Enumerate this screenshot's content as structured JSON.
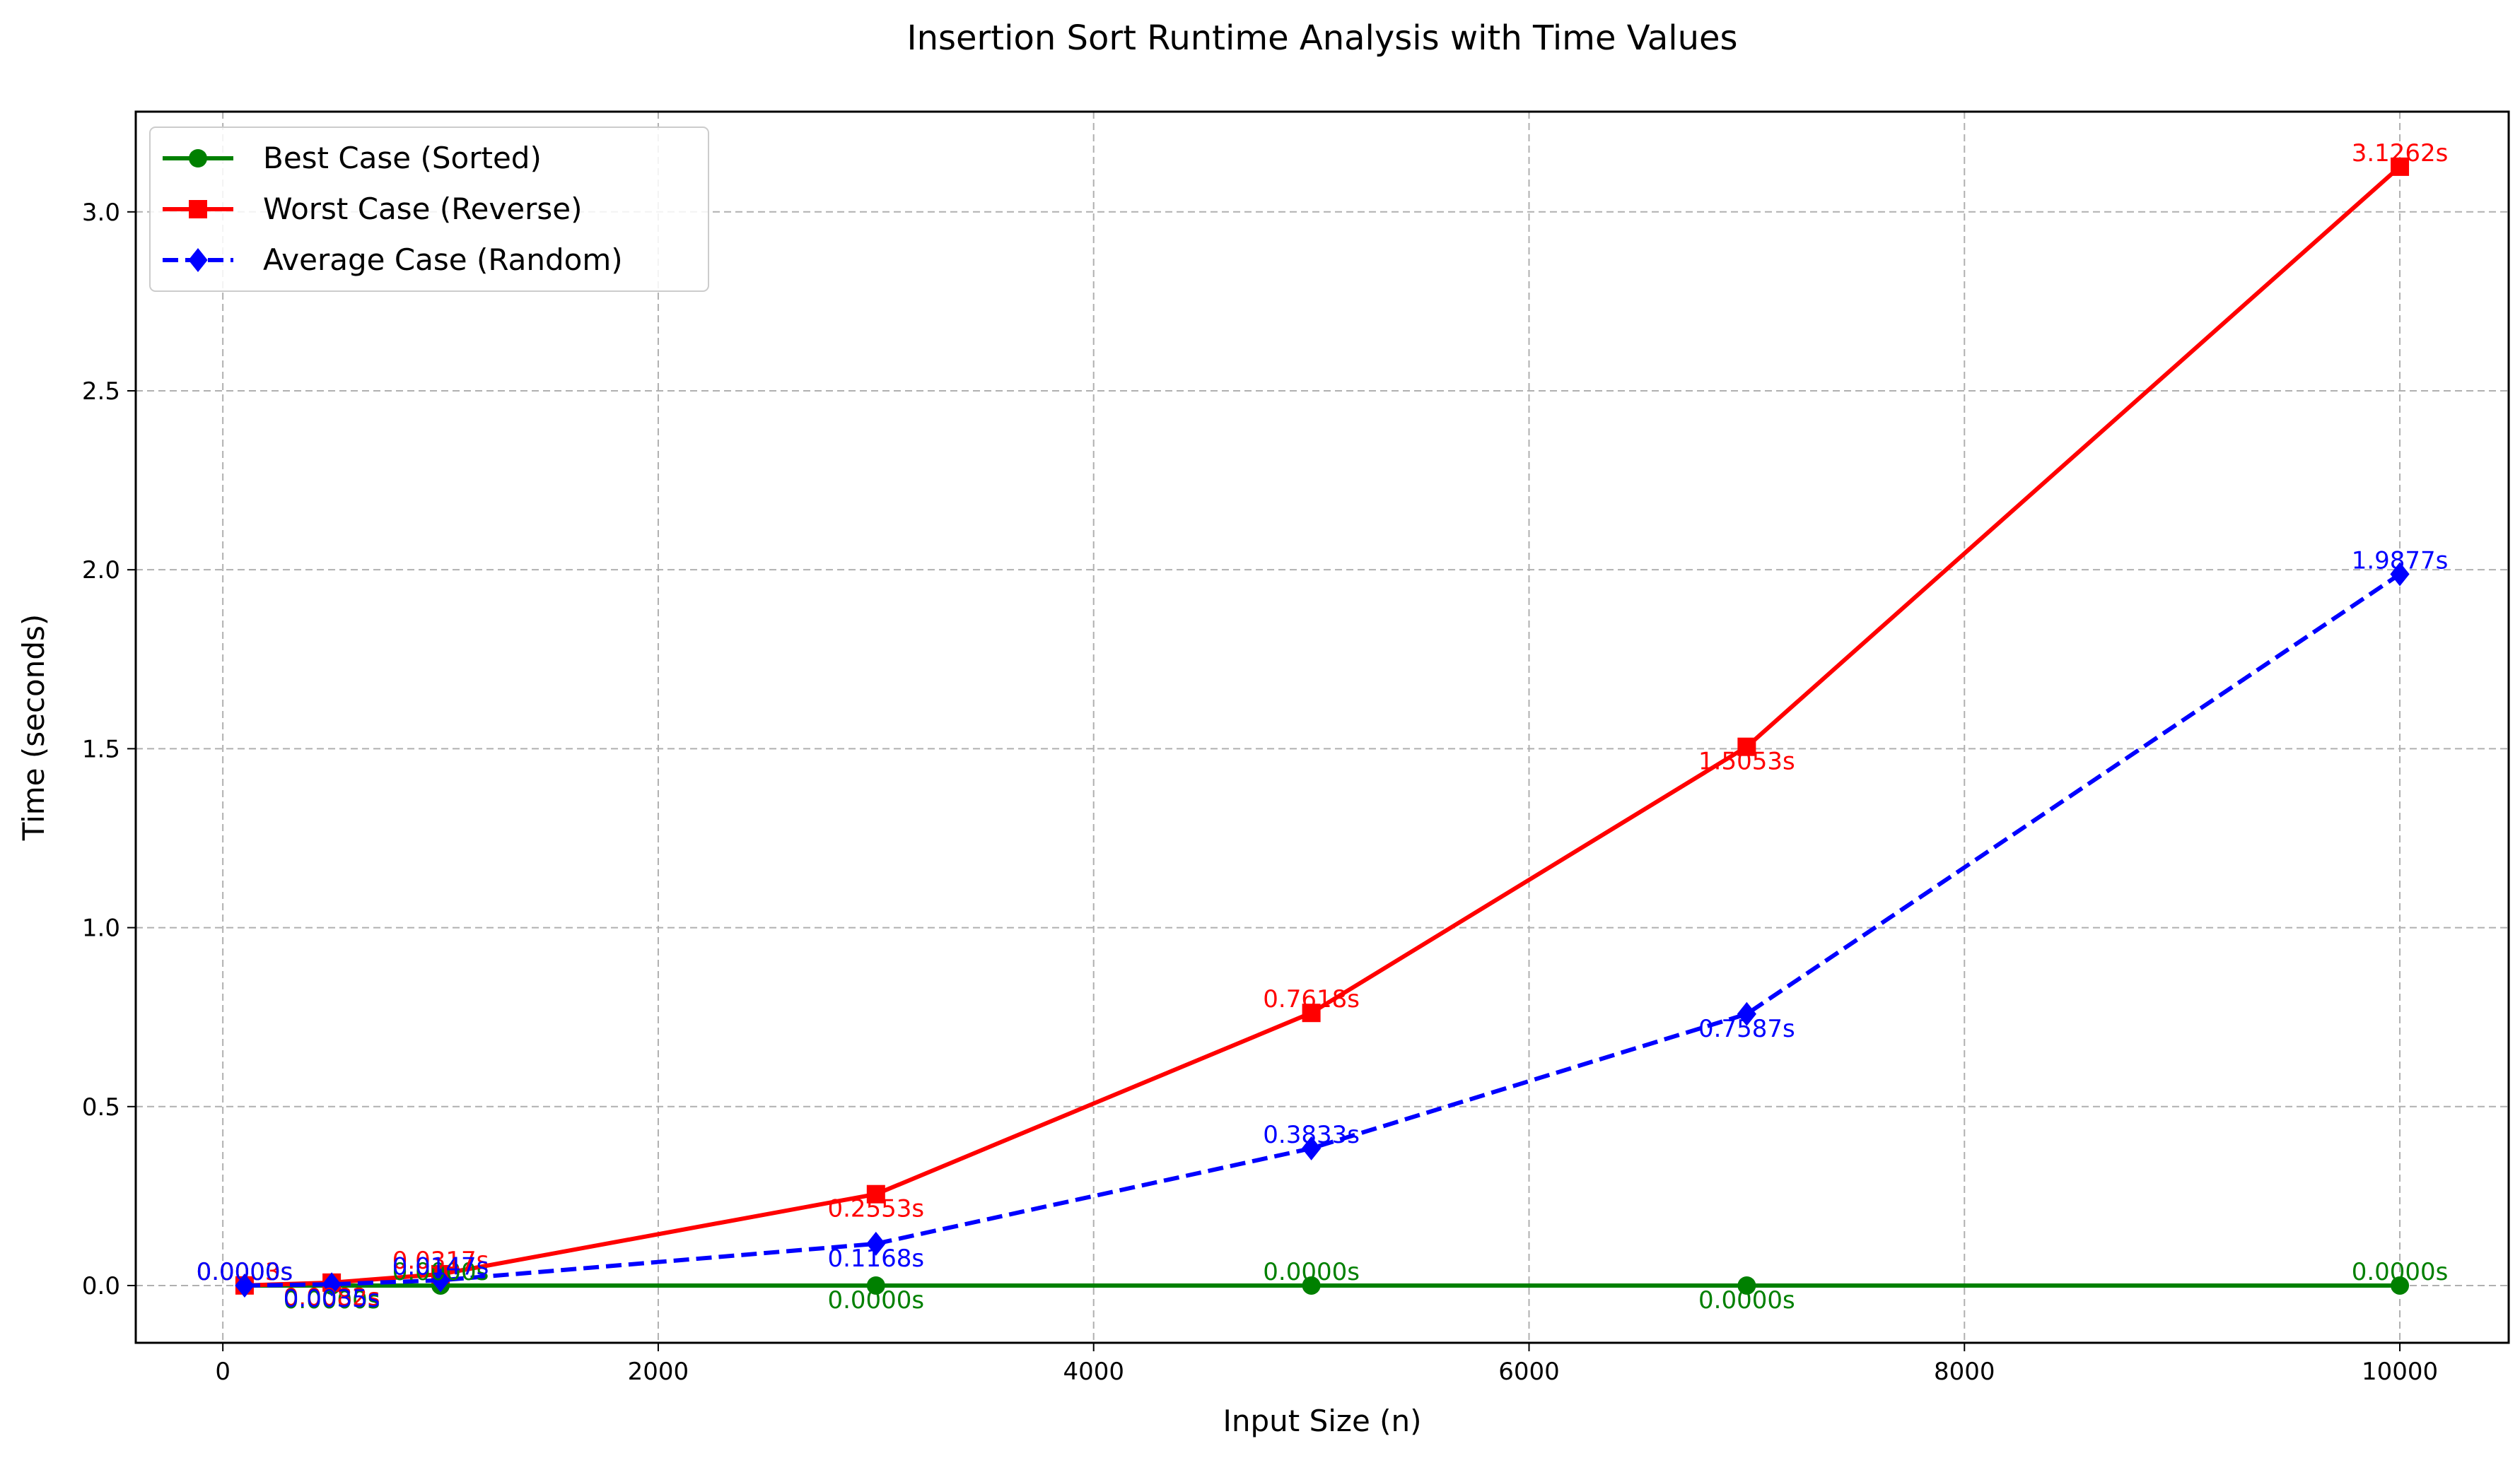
{
  "chart_data": {
    "type": "line",
    "title": "Insertion Sort Runtime Analysis with Time Values",
    "xlabel": "Input Size (n)",
    "ylabel": "Time (seconds)",
    "xlim": [
      -400,
      10500
    ],
    "ylim": [
      -0.16,
      3.28
    ],
    "xticks": [
      0,
      2000,
      4000,
      6000,
      8000,
      10000
    ],
    "xtick_labels": [
      "0",
      "2000",
      "4000",
      "6000",
      "8000",
      "10000"
    ],
    "yticks": [
      0.0,
      0.5,
      1.0,
      1.5,
      2.0,
      2.5,
      3.0
    ],
    "ytick_labels": [
      "0.0",
      "0.5",
      "1.0",
      "1.5",
      "2.0",
      "2.5",
      "3.0"
    ],
    "grid": true,
    "legend_position": "top-left",
    "x": [
      100,
      500,
      1000,
      3000,
      5000,
      7000,
      10000
    ],
    "series": [
      {
        "name": "Best Case (Sorted)",
        "color": "#008000",
        "marker": "circle",
        "linestyle": "solid",
        "values": [
          0.0,
          0.0,
          0.0,
          0.0,
          0.0,
          0.0,
          0.0
        ],
        "labels": [
          "0.0000s",
          "0.0000s",
          "0.0000s",
          "0.0000s",
          "0.0000s",
          "0.0000s",
          "0.0000s"
        ]
      },
      {
        "name": "Worst Case (Reverse)",
        "color": "#ff0000",
        "marker": "square",
        "linestyle": "solid",
        "values": [
          0.0003,
          0.0082,
          0.0317,
          0.2553,
          0.7618,
          1.5053,
          3.1262
        ],
        "labels": [
          "0.0003s",
          "0.0082s",
          "0.0317s",
          "0.2553s",
          "0.7618s",
          "1.5053s",
          "3.1262s"
        ]
      },
      {
        "name": "Average Case (Random)",
        "color": "#0000ff",
        "marker": "diamond",
        "linestyle": "dashed",
        "values": [
          0.0,
          0.0035,
          0.0147,
          0.1168,
          0.3833,
          0.7587,
          1.9877
        ],
        "labels": [
          "0.0000s",
          "0.0035s",
          "0.0147s",
          "0.1168s",
          "0.3833s",
          "0.7587s",
          "1.9877s"
        ]
      }
    ]
  }
}
